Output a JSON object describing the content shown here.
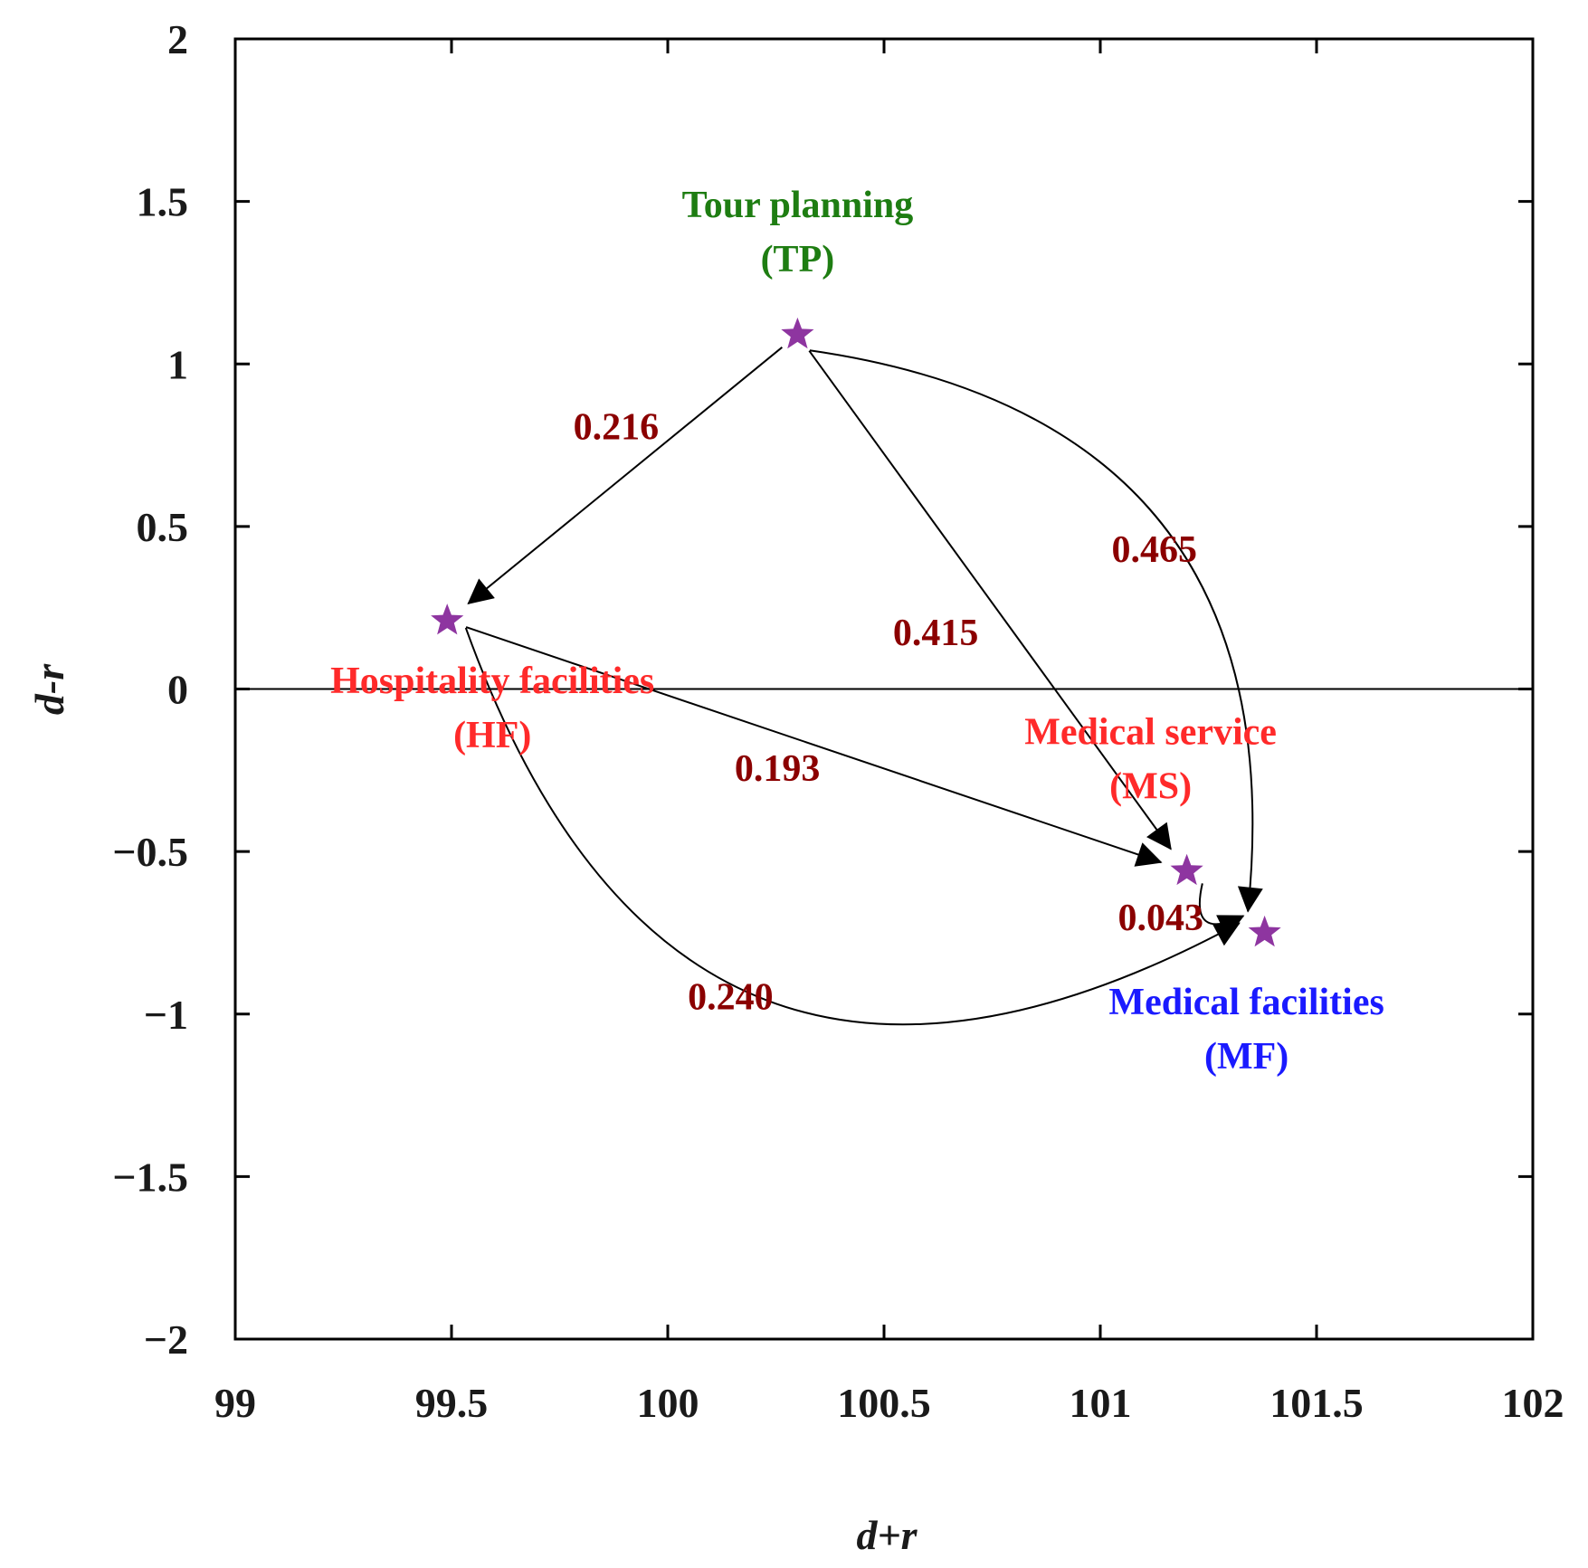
{
  "chart_data": {
    "type": "scatter",
    "xlabel": "d+r",
    "ylabel": "d-r",
    "xlim": [
      99,
      102
    ],
    "ylim": [
      -2,
      2
    ],
    "x_ticks": [
      "99",
      "99.5",
      "100",
      "100.5",
      "101",
      "101.5",
      "102"
    ],
    "y_ticks": [
      "2",
      "1.5",
      "1",
      "0.5",
      "0",
      "−0.5",
      "−1",
      "−1.5",
      "−2"
    ],
    "grid": false,
    "zero_line": true,
    "marker": "star",
    "marker_color": "#8e35a0",
    "nodes": [
      {
        "id": "TP",
        "x": 100.3,
        "y": 1.09,
        "label_line1": "Tour planning",
        "label_line2": "(TP)",
        "color": "#1e7d12"
      },
      {
        "id": "HF",
        "x": 99.49,
        "y": 0.21,
        "label_line1": "Hospitality facilities",
        "label_line2": "(HF)",
        "color": "#ff2a2a"
      },
      {
        "id": "MS",
        "x": 101.2,
        "y": -0.56,
        "label_line1": "Medical service",
        "label_line2": "(MS)",
        "color": "#ff2a2a"
      },
      {
        "id": "MF",
        "x": 101.38,
        "y": -0.75,
        "label_line1": "Medical facilities",
        "label_line2": "(MF)",
        "color": "#1a1aff"
      }
    ],
    "edges": [
      {
        "from": "TP",
        "to": "HF",
        "value": "0.216"
      },
      {
        "from": "TP",
        "to": "MS",
        "value": "0.415"
      },
      {
        "from": "TP",
        "to": "MF",
        "value": "0.465"
      },
      {
        "from": "HF",
        "to": "MS",
        "value": "0.193"
      },
      {
        "from": "HF",
        "to": "MF",
        "value": "0.240"
      },
      {
        "from": "MS",
        "to": "MF",
        "value": "0.043"
      }
    ],
    "edge_label_color": "#8b0000"
  }
}
